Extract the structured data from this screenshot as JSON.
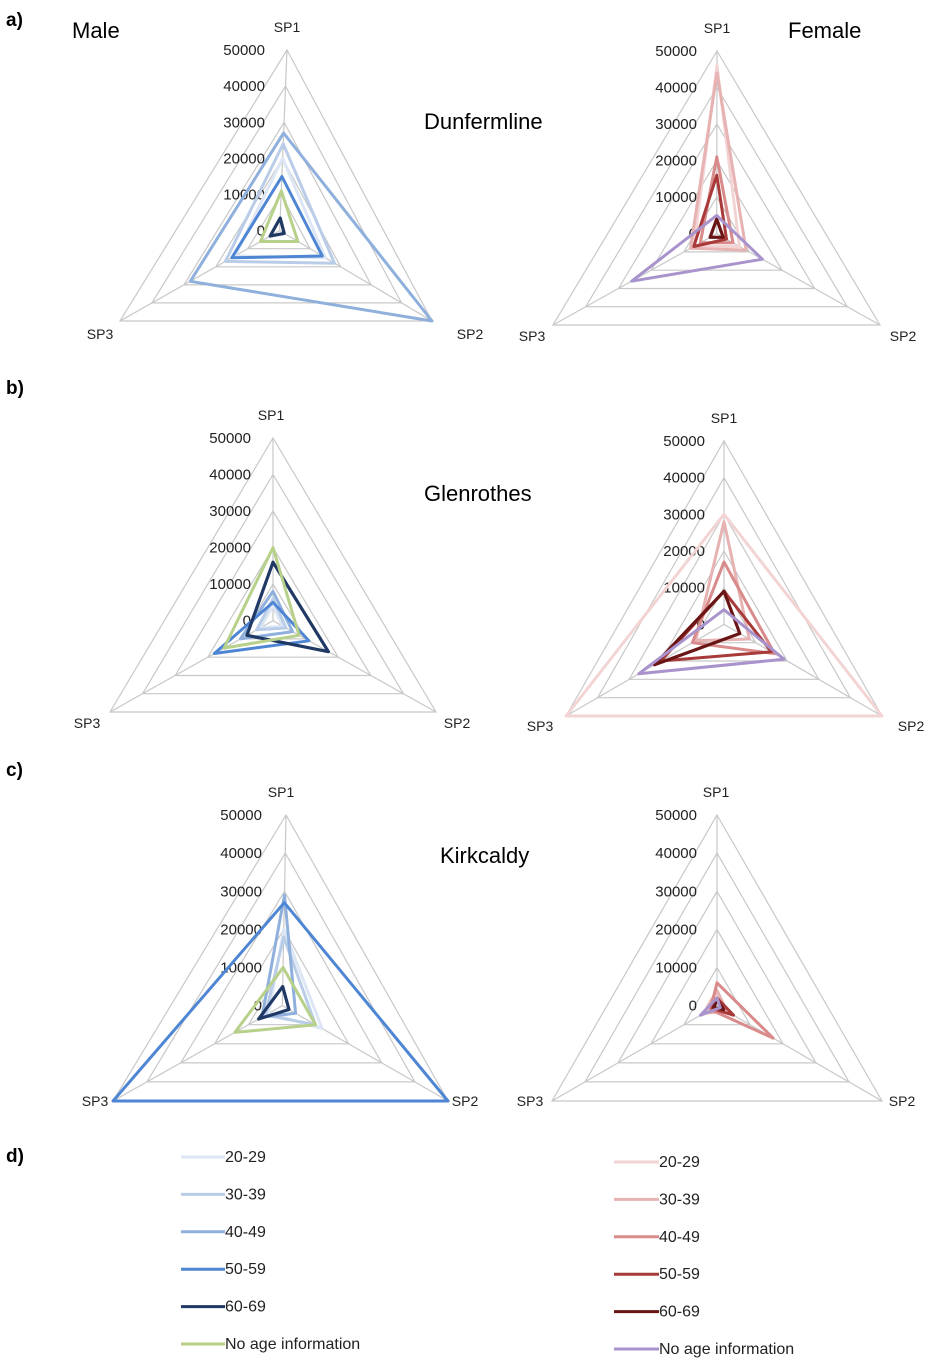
{
  "panel_letters": [
    "a)",
    "b)",
    "c)",
    "d)"
  ],
  "header": {
    "male": "Male",
    "female": "Female"
  },
  "sites": [
    "Dunfermline",
    "Glenrothes",
    "Kirkcaldy"
  ],
  "axes": [
    "SP1",
    "SP2",
    "SP3"
  ],
  "ticks": [
    "0",
    "10000",
    "20000",
    "30000",
    "40000",
    "50000"
  ],
  "legend": {
    "male": [
      {
        "label": "20-29",
        "color": "#dce6f4"
      },
      {
        "label": "30-39",
        "color": "#b9cde8"
      },
      {
        "label": "40-49",
        "color": "#8fb0dc"
      },
      {
        "label": "50-59",
        "color": "#4f86d4"
      },
      {
        "label": "60-69",
        "color": "#1f3864"
      },
      {
        "label": "No age information",
        "color": "#b7d08a"
      }
    ],
    "female": [
      {
        "label": "20-29",
        "color": "#f3d4d4"
      },
      {
        "label": "30-39",
        "color": "#e6b2b2"
      },
      {
        "label": "40-49",
        "color": "#d98a8a"
      },
      {
        "label": "50-59",
        "color": "#a83a3a"
      },
      {
        "label": "60-69",
        "color": "#6a1515"
      },
      {
        "label": "No age information",
        "color": "#a993cc"
      }
    ]
  },
  "chart_data": [
    {
      "type": "radar",
      "site": "Dunfermline",
      "sex": "Male",
      "axes": [
        "SP1",
        "SP2",
        "SP3"
      ],
      "range": [
        0,
        50000
      ],
      "series": [
        {
          "name": "20-29",
          "values": [
            20000,
            15000,
            14000
          ]
        },
        {
          "name": "30-39",
          "values": [
            24000,
            18000,
            17000
          ]
        },
        {
          "name": "40-49",
          "values": [
            27000,
            50000,
            28000
          ]
        },
        {
          "name": "50-59",
          "values": [
            15000,
            14000,
            15000
          ]
        },
        {
          "name": "60-69",
          "values": [
            3500,
            1500,
            3000
          ]
        },
        {
          "name": "No age information",
          "values": [
            11000,
            6000,
            6000
          ]
        }
      ]
    },
    {
      "type": "radar",
      "site": "Dunfermline",
      "sex": "Female",
      "axes": [
        "SP1",
        "SP2",
        "SP3"
      ],
      "range": [
        0,
        50000
      ],
      "series": [
        {
          "name": "20-29",
          "values": [
            46000,
            7000,
            7000
          ]
        },
        {
          "name": "30-39",
          "values": [
            44000,
            9000,
            8000
          ]
        },
        {
          "name": "40-49",
          "values": [
            21000,
            5000,
            5000
          ]
        },
        {
          "name": "50-59",
          "values": [
            16000,
            3000,
            7000
          ]
        },
        {
          "name": "60-69",
          "values": [
            4000,
            2000,
            2000
          ]
        },
        {
          "name": "No age information",
          "values": [
            5000,
            14000,
            26000
          ]
        }
      ]
    },
    {
      "type": "radar",
      "site": "Glenrothes",
      "sex": "Male",
      "axes": [
        "SP1",
        "SP2",
        "SP3"
      ],
      "range": [
        0,
        50000
      ],
      "series": [
        {
          "name": "20-29",
          "values": [
            4000,
            3000,
            4000
          ]
        },
        {
          "name": "30-39",
          "values": [
            6000,
            4000,
            5000
          ]
        },
        {
          "name": "40-49",
          "values": [
            8000,
            6000,
            10000
          ]
        },
        {
          "name": "50-59",
          "values": [
            5000,
            11000,
            18000
          ]
        },
        {
          "name": "60-69",
          "values": [
            16000,
            17000,
            8000
          ]
        },
        {
          "name": "No age information",
          "values": [
            20000,
            8000,
            15000
          ]
        }
      ]
    },
    {
      "type": "radar",
      "site": "Glenrothes",
      "sex": "Female",
      "axes": [
        "SP1",
        "SP2",
        "SP3"
      ],
      "range": [
        0,
        50000
      ],
      "series": [
        {
          "name": "20-29",
          "values": [
            30000,
            50000,
            50000
          ]
        },
        {
          "name": "30-39",
          "values": [
            28000,
            8000,
            9000
          ]
        },
        {
          "name": "40-49",
          "values": [
            17000,
            16000,
            10000
          ]
        },
        {
          "name": "50-59",
          "values": [
            9000,
            15000,
            20000
          ]
        },
        {
          "name": "60-69",
          "values": [
            9000,
            5000,
            22000
          ]
        },
        {
          "name": "No age information",
          "values": [
            4000,
            19000,
            27000
          ]
        }
      ]
    },
    {
      "type": "radar",
      "site": "Kirkcaldy",
      "sex": "Male",
      "axes": [
        "SP1",
        "SP2",
        "SP3"
      ],
      "range": [
        0,
        50000
      ],
      "series": [
        {
          "name": "20-29",
          "values": [
            20000,
            12000,
            4000
          ]
        },
        {
          "name": "30-39",
          "values": [
            18000,
            10000,
            5000
          ]
        },
        {
          "name": "40-49",
          "values": [
            29000,
            4000,
            6000
          ]
        },
        {
          "name": "50-59",
          "values": [
            27000,
            50000,
            50000
          ]
        },
        {
          "name": "60-69",
          "values": [
            5000,
            2000,
            7000
          ]
        },
        {
          "name": "No age information",
          "values": [
            10000,
            10000,
            14000
          ]
        }
      ]
    },
    {
      "type": "radar",
      "site": "Kirkcaldy",
      "sex": "Female",
      "axes": [
        "SP1",
        "SP2",
        "SP3"
      ],
      "range": [
        0,
        50000
      ],
      "series": [
        {
          "name": "20-29",
          "values": [
            3000,
            2000,
            3000
          ]
        },
        {
          "name": "30-39",
          "values": [
            4000,
            3000,
            4000
          ]
        },
        {
          "name": "40-49",
          "values": [
            6000,
            17000,
            2000
          ]
        },
        {
          "name": "50-59",
          "values": [
            2000,
            5000,
            1500
          ]
        },
        {
          "name": "60-69",
          "values": [
            1500,
            2000,
            1000
          ]
        },
        {
          "name": "No age information",
          "values": [
            2000,
            1000,
            5000
          ]
        }
      ]
    }
  ]
}
